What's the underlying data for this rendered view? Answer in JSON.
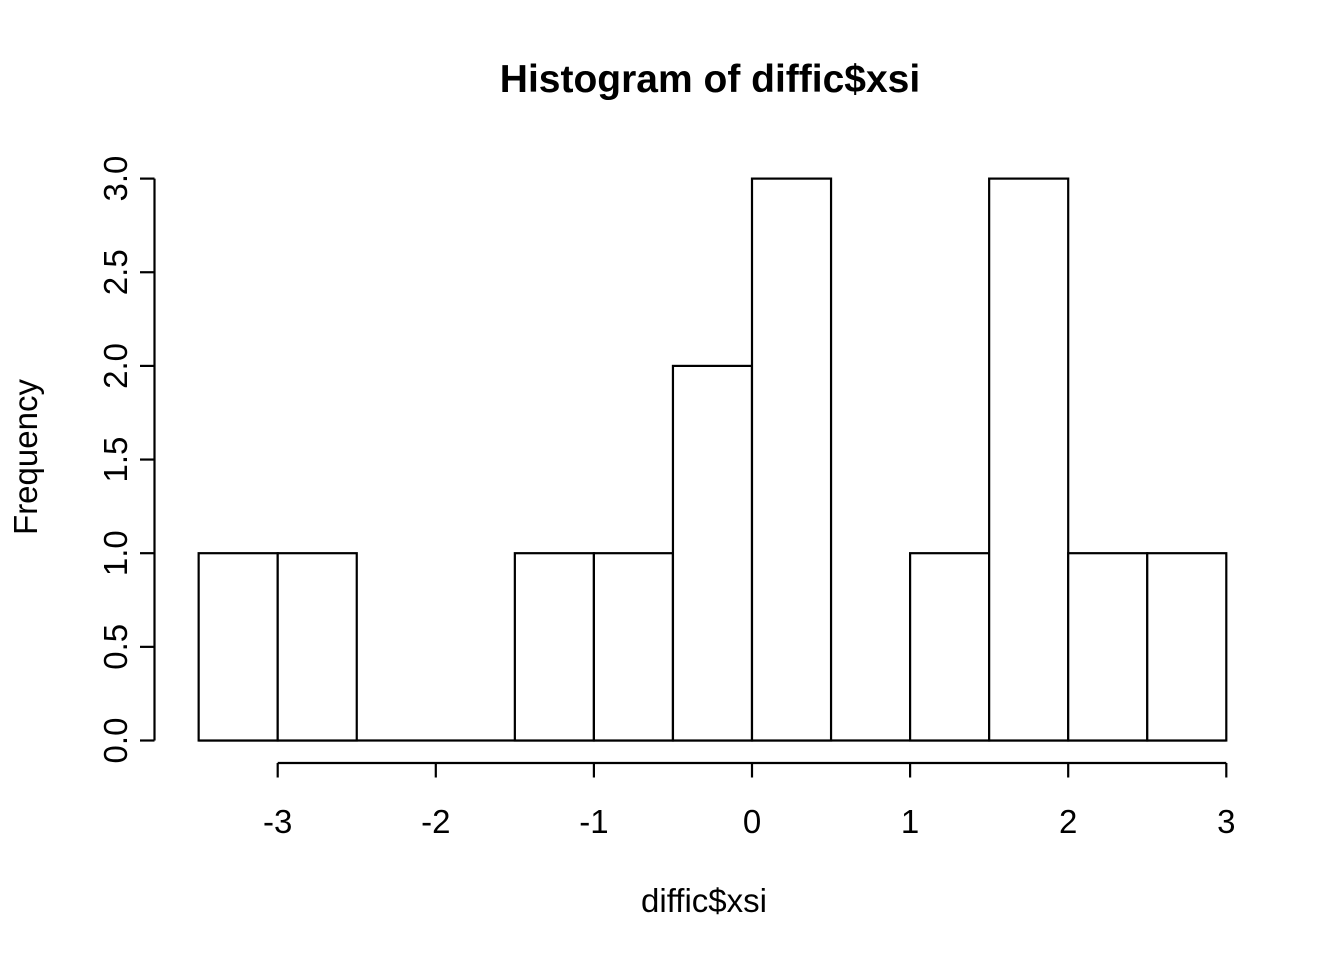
{
  "chart_data": {
    "type": "bar",
    "subtype": "histogram",
    "title": "Histogram of diffic$xsi",
    "xlabel": "diffic$xsi",
    "ylabel": "Frequency",
    "bin_breaks": [
      -3.5,
      -3,
      -2.5,
      -2,
      -1.5,
      -1,
      -0.5,
      0,
      0.5,
      1,
      1.5,
      2,
      2.5,
      3
    ],
    "counts": [
      1,
      1,
      0,
      0,
      1,
      1,
      2,
      3,
      0,
      1,
      3,
      1,
      1
    ],
    "x_tick_values": [
      -3,
      -2,
      -1,
      0,
      1,
      2,
      3
    ],
    "x_tick_labels": [
      "-3",
      "-2",
      "-1",
      "0",
      "1",
      "2",
      "3"
    ],
    "y_tick_values": [
      0,
      0.5,
      1,
      1.5,
      2,
      2.5,
      3
    ],
    "y_tick_labels": [
      "0.0",
      "0.5",
      "1.0",
      "1.5",
      "2.0",
      "2.5",
      "3.0"
    ],
    "xlim": [
      -3.5,
      3
    ],
    "ylim": [
      0,
      3
    ],
    "grid": false,
    "colors": {
      "bar_fill": "#ffffff",
      "line": "#000000",
      "text": "#000000",
      "background": "#ffffff"
    }
  }
}
